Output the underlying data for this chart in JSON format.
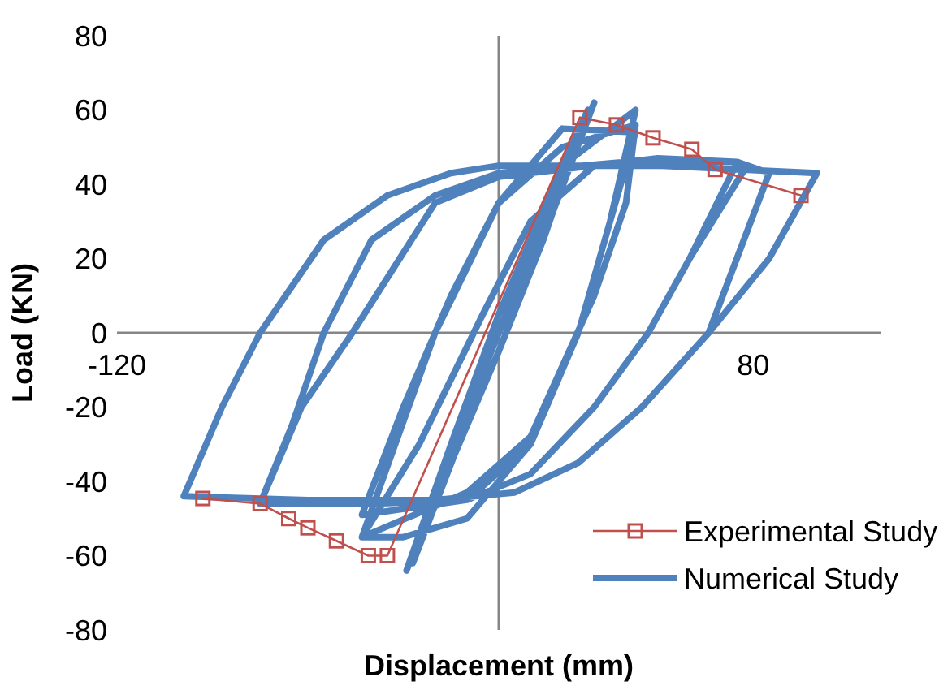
{
  "chart_data": {
    "type": "line",
    "xlabel": "Displacement (mm)",
    "ylabel": "Load (KN)",
    "xlim": [
      -120,
      120
    ],
    "xticks": [
      -120,
      80
    ],
    "ylim": [
      -80,
      80
    ],
    "yticks": [
      -80,
      -60,
      -40,
      -20,
      0,
      20,
      40,
      60,
      80
    ],
    "grid": false,
    "legend": "bottom right",
    "line_style": "solid",
    "series": [
      {
        "name": "Experimental Study",
        "color": "#c0504d",
        "marker": "square",
        "x": [
          -93,
          -75,
          -66,
          -60,
          -51,
          -41,
          -35,
          25.5,
          37,
          48.5,
          60.7,
          68,
          95
        ],
        "values": [
          -44.6,
          -46,
          -50,
          -52.5,
          -56,
          -60,
          -60,
          58,
          56,
          52.5,
          49.4,
          44,
          37
        ]
      },
      {
        "name": "Numerical Study",
        "color": "#4f81bd",
        "marker": "none",
        "x": [
          0,
          15,
          30,
          15,
          0,
          -15,
          -29,
          -15,
          0,
          15,
          28,
          14,
          0,
          -14,
          -27,
          -13,
          0,
          20,
          43,
          35,
          25,
          10,
          -10,
          -30,
          -43,
          -20,
          0,
          20,
          43,
          35,
          25,
          10,
          -10,
          -43,
          -30,
          -15,
          0,
          20,
          43,
          40,
          30,
          10,
          -10,
          -43,
          -25,
          -5,
          10,
          30,
          50,
          75,
          60,
          47,
          30,
          10,
          -10,
          -40,
          -75,
          -65,
          -55,
          -40,
          -20,
          0,
          40,
          75,
          78,
          60,
          47,
          30,
          10,
          -10,
          -40,
          -75,
          -62,
          -46,
          -20,
          0,
          40,
          75,
          85,
          66,
          45,
          25,
          5,
          -20,
          -60,
          -99,
          -87,
          -75,
          -55,
          -35,
          -15,
          0,
          50,
          100,
          85,
          66,
          45,
          25,
          5,
          -20,
          -60,
          -99
        ],
        "values": [
          0,
          30,
          62,
          28,
          -5,
          -35,
          -64,
          -30,
          5,
          35,
          60,
          25,
          -5,
          -33,
          -62,
          -28,
          0,
          45,
          60,
          30,
          0,
          -30,
          -50,
          -55,
          -55,
          0,
          35,
          55,
          54,
          30,
          0,
          -30,
          -45,
          -49,
          -20,
          10,
          35,
          50,
          56,
          35,
          10,
          -28,
          -43,
          -55,
          -30,
          5,
          30,
          45,
          47,
          46,
          20,
          0,
          -20,
          -38,
          -45,
          -46,
          -46,
          -25,
          0,
          25,
          37,
          43,
          46,
          46,
          45,
          20,
          0,
          -20,
          -38,
          -45,
          -46,
          -46,
          -20,
          0,
          35,
          42,
          46,
          46,
          43,
          0,
          -20,
          -35,
          -43,
          -45,
          -45,
          -44,
          -20,
          0,
          25,
          37,
          43,
          45,
          45,
          43,
          20,
          0,
          -20,
          -35,
          -43,
          -45,
          -45,
          -44
        ]
      }
    ]
  }
}
